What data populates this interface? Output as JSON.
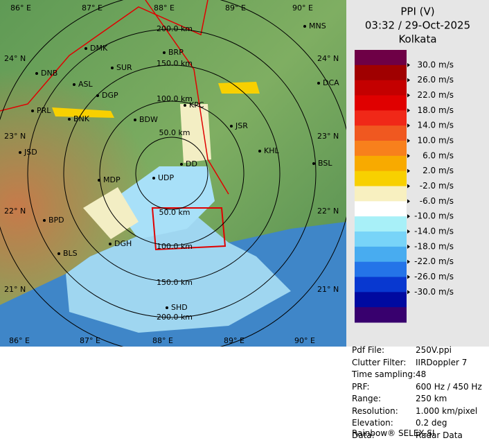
{
  "panel": {
    "title": "PPI (V)",
    "datetime": "03:32 / 29-Oct-2025",
    "site": "Kolkata"
  },
  "legend": {
    "colors": [
      "#6e0046",
      "#a00000",
      "#c40000",
      "#e00000",
      "#f02818",
      "#f05820",
      "#f8801c",
      "#f8aa00",
      "#f8d000",
      "#f8f0c0",
      "#ffffff",
      "#a8f0f8",
      "#78d4f8",
      "#48acf0",
      "#2474e8",
      "#0838d0",
      "#000aa0",
      "#38006e"
    ],
    "labels": [
      "30.0 m/s",
      "26.0 m/s",
      "22.0 m/s",
      "18.0 m/s",
      "14.0 m/s",
      "10.0 m/s",
      "6.0 m/s",
      "2.0 m/s",
      "-2.0 m/s",
      "-6.0 m/s",
      "-10.0 m/s",
      "-14.0 m/s",
      "-18.0 m/s",
      "-22.0 m/s",
      "-26.0 m/s",
      "-30.0 m/s"
    ]
  },
  "map": {
    "lon_top": [
      "86° E",
      "87° E",
      "88° E",
      "89° E",
      "90° E"
    ],
    "lon_bottom": [
      "86° E",
      "87° E",
      "88° E",
      "89° E",
      "90° E"
    ],
    "lat_left": [
      "24° N",
      "23° N",
      "22° N",
      "21° N"
    ],
    "lat_right": [
      "24° N",
      "23° N",
      "22° N",
      "21° N"
    ],
    "rings_north": [
      "200.0 km",
      "150.0 km",
      "100.0 km",
      "50.0 km"
    ],
    "rings_south": [
      "50.0 km",
      "100.0 km",
      "150.0 km",
      "200.0 km"
    ],
    "cities": [
      "MNS",
      "DMK",
      "BRP",
      "DNB",
      "SUR",
      "DCA",
      "ASL",
      "DGP",
      "KPC",
      "PRL",
      "BNK",
      "BDW",
      "JSR",
      "KHL",
      "JSD",
      "DD",
      "BSL",
      "MDP",
      "UDP",
      "BPD",
      "DGH",
      "BLS",
      "SHD"
    ]
  },
  "info": {
    "rows": [
      [
        "Pdf File:",
        "250V.ppi"
      ],
      [
        "Clutter Filter:",
        "IIRDoppler 7"
      ],
      [
        "Time sampling:",
        "48"
      ],
      [
        "PRF:",
        "600 Hz / 450 Hz"
      ],
      [
        "Range:",
        "250 km"
      ],
      [
        "Resolution:",
        "1.000 km/pixel"
      ],
      [
        "Elevation:",
        "0.2 deg"
      ],
      [
        "Data:",
        "Radar Data"
      ]
    ],
    "footer": "Rainbow® SELEX-SI"
  }
}
